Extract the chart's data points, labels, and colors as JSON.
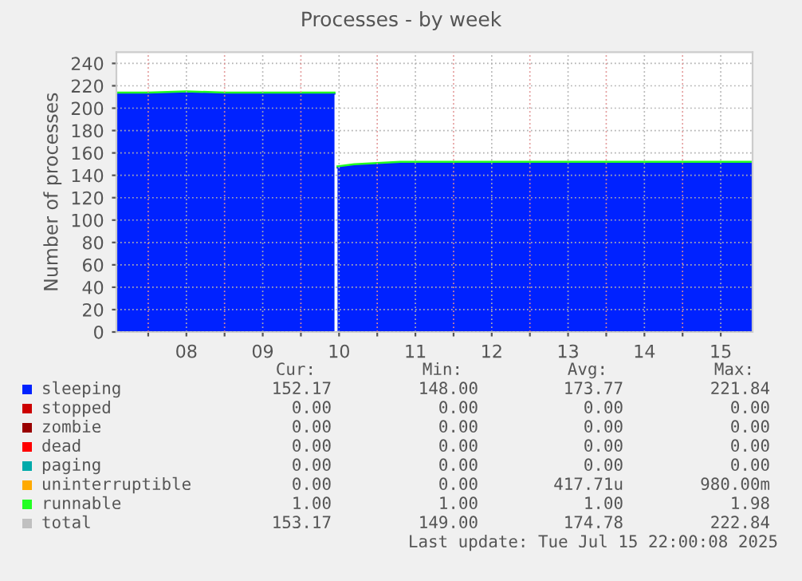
{
  "chart_data": {
    "type": "area",
    "stacked": true,
    "title": "Processes - by week",
    "ylabel": "Number of processes",
    "x": [
      7.583,
      8.0,
      8.5,
      9.0,
      9.5,
      10.0,
      10.44,
      10.46,
      10.48,
      10.7,
      11.0,
      11.3,
      11.6,
      12.0,
      12.5,
      13.0,
      13.5,
      14.0,
      14.5,
      15.0,
      15.5,
      15.917
    ],
    "xlim": [
      7.583,
      15.917
    ],
    "xticks": [
      {
        "value": 8,
        "label": null
      },
      {
        "value": 8.5,
        "label": "08"
      },
      {
        "value": 9,
        "label": null
      },
      {
        "value": 9.5,
        "label": "09"
      },
      {
        "value": 10,
        "label": null
      },
      {
        "value": 10.5,
        "label": "10"
      },
      {
        "value": 11,
        "label": null
      },
      {
        "value": 11.5,
        "label": "11"
      },
      {
        "value": 12,
        "label": null
      },
      {
        "value": 12.5,
        "label": "12"
      },
      {
        "value": 13,
        "label": null
      },
      {
        "value": 13.5,
        "label": "13"
      },
      {
        "value": 14,
        "label": null
      },
      {
        "value": 14.5,
        "label": "14"
      },
      {
        "value": 15,
        "label": null
      },
      {
        "value": 15.5,
        "label": "15"
      }
    ],
    "ylim": [
      0,
      250
    ],
    "yticks": [
      0,
      20,
      40,
      60,
      80,
      100,
      120,
      140,
      160,
      180,
      200,
      220,
      240
    ],
    "grid": true,
    "legend": "bottom",
    "series": [
      {
        "name": "sleeping",
        "color": "#0022ff",
        "values": [
          213,
          213,
          214,
          213,
          213,
          213,
          213,
          null,
          147,
          149,
          150,
          151,
          151,
          151,
          151,
          151,
          151,
          151,
          151,
          151,
          151,
          151
        ]
      },
      {
        "name": "stopped",
        "color": "#cc0000",
        "values": [
          null,
          null,
          null,
          null,
          null,
          null,
          null,
          null,
          null,
          null,
          null,
          null,
          null,
          null,
          null,
          null,
          null,
          null,
          null,
          null,
          null,
          null
        ]
      },
      {
        "name": "zombie",
        "color": "#990000",
        "values": [
          null,
          null,
          null,
          null,
          null,
          null,
          null,
          null,
          null,
          null,
          null,
          null,
          null,
          null,
          null,
          null,
          null,
          null,
          null,
          null,
          null,
          null
        ]
      },
      {
        "name": "dead",
        "color": "#ff0000",
        "values": [
          null,
          null,
          null,
          null,
          null,
          null,
          null,
          null,
          null,
          null,
          null,
          null,
          null,
          null,
          null,
          null,
          null,
          null,
          null,
          null,
          null,
          null
        ]
      },
      {
        "name": "paging",
        "color": "#00aaaa",
        "values": [
          null,
          null,
          null,
          null,
          null,
          null,
          null,
          null,
          null,
          null,
          null,
          null,
          null,
          null,
          null,
          null,
          null,
          null,
          null,
          null,
          null,
          null
        ]
      },
      {
        "name": "uninterruptible",
        "color": "#ffaa00",
        "values": [
          null,
          null,
          null,
          null,
          null,
          null,
          null,
          null,
          null,
          null,
          null,
          null,
          null,
          null,
          null,
          null,
          null,
          null,
          null,
          null,
          null,
          null
        ]
      },
      {
        "name": "runnable",
        "color": "#22ff22",
        "values": [
          1,
          1,
          1,
          1,
          1,
          1,
          1,
          null,
          1,
          1,
          1,
          1,
          1,
          1,
          1,
          1,
          1,
          1,
          1,
          1,
          1,
          1
        ]
      },
      {
        "name": "total",
        "color": "#c0c0c0",
        "values": [
          null,
          null,
          null,
          null,
          null,
          null,
          null,
          null,
          null,
          null,
          null,
          null,
          null,
          null,
          null,
          null,
          null,
          null,
          null,
          null,
          null,
          null
        ]
      }
    ],
    "annotations": [
      "Cur:",
      "Min:",
      "Avg:",
      "Max:",
      "152.17",
      "148.00",
      "173.77",
      "221.84",
      "0.00",
      "0.00",
      "0.00",
      "0.00",
      "0.00",
      "0.00",
      "0.00",
      "0.00",
      "0.00",
      "0.00",
      "0.00",
      "0.00",
      "0.00",
      "0.00",
      "0.00",
      "0.00",
      "0.00",
      "0.00",
      "417.71u",
      "980.00m",
      "1.00",
      "1.00",
      "1.00",
      "1.98",
      "153.17",
      "149.00",
      "174.78",
      "222.84",
      "Last update: Tue Jul 15 22:00:08 2025"
    ]
  }
}
